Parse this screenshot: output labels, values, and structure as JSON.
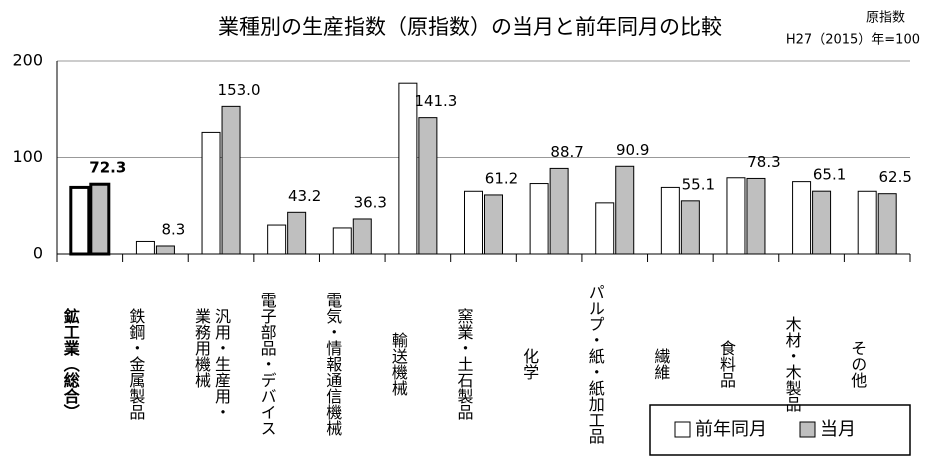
{
  "chart_data": {
    "type": "bar",
    "title": "業種別の生産指数（原指数）の当月と前年同月の比較",
    "unit_note": [
      "原指数",
      "H27（2015）年=100"
    ],
    "categories": [
      "鉱工業（総合）",
      "鉄鋼・金属製品",
      "汎用・生産用・\n業務用機械",
      "電子部品・デバイス",
      "電気・情報通信機械",
      "輸送機械",
      "窯業・土石製品",
      "化学",
      "パルプ・紙・紙加工品",
      "繊維",
      "食料品",
      "木材・木製品",
      "その他"
    ],
    "series": [
      {
        "name": "前年同月",
        "color": "#ffffff",
        "values": [
          69,
          13,
          126,
          30,
          27,
          177,
          65,
          73,
          53,
          69,
          79,
          75,
          65
        ]
      },
      {
        "name": "当月",
        "color": "#bfbfbf",
        "values": [
          72.3,
          8.3,
          153.0,
          43.2,
          36.3,
          141.3,
          61.2,
          88.7,
          90.9,
          55.1,
          78.3,
          65.1,
          62.5
        ],
        "value_labels": [
          "72.3",
          "8.3",
          "153.0",
          "43.2",
          "36.3",
          "141.3",
          "61.2",
          "88.7",
          "90.9",
          "55.1",
          "78.3",
          "65.1",
          "62.5"
        ]
      }
    ],
    "emphasis_index": 0,
    "ylim": [
      0,
      200
    ],
    "yticks": [
      0,
      100,
      200
    ],
    "grid": true,
    "legend": "bottom-right"
  }
}
